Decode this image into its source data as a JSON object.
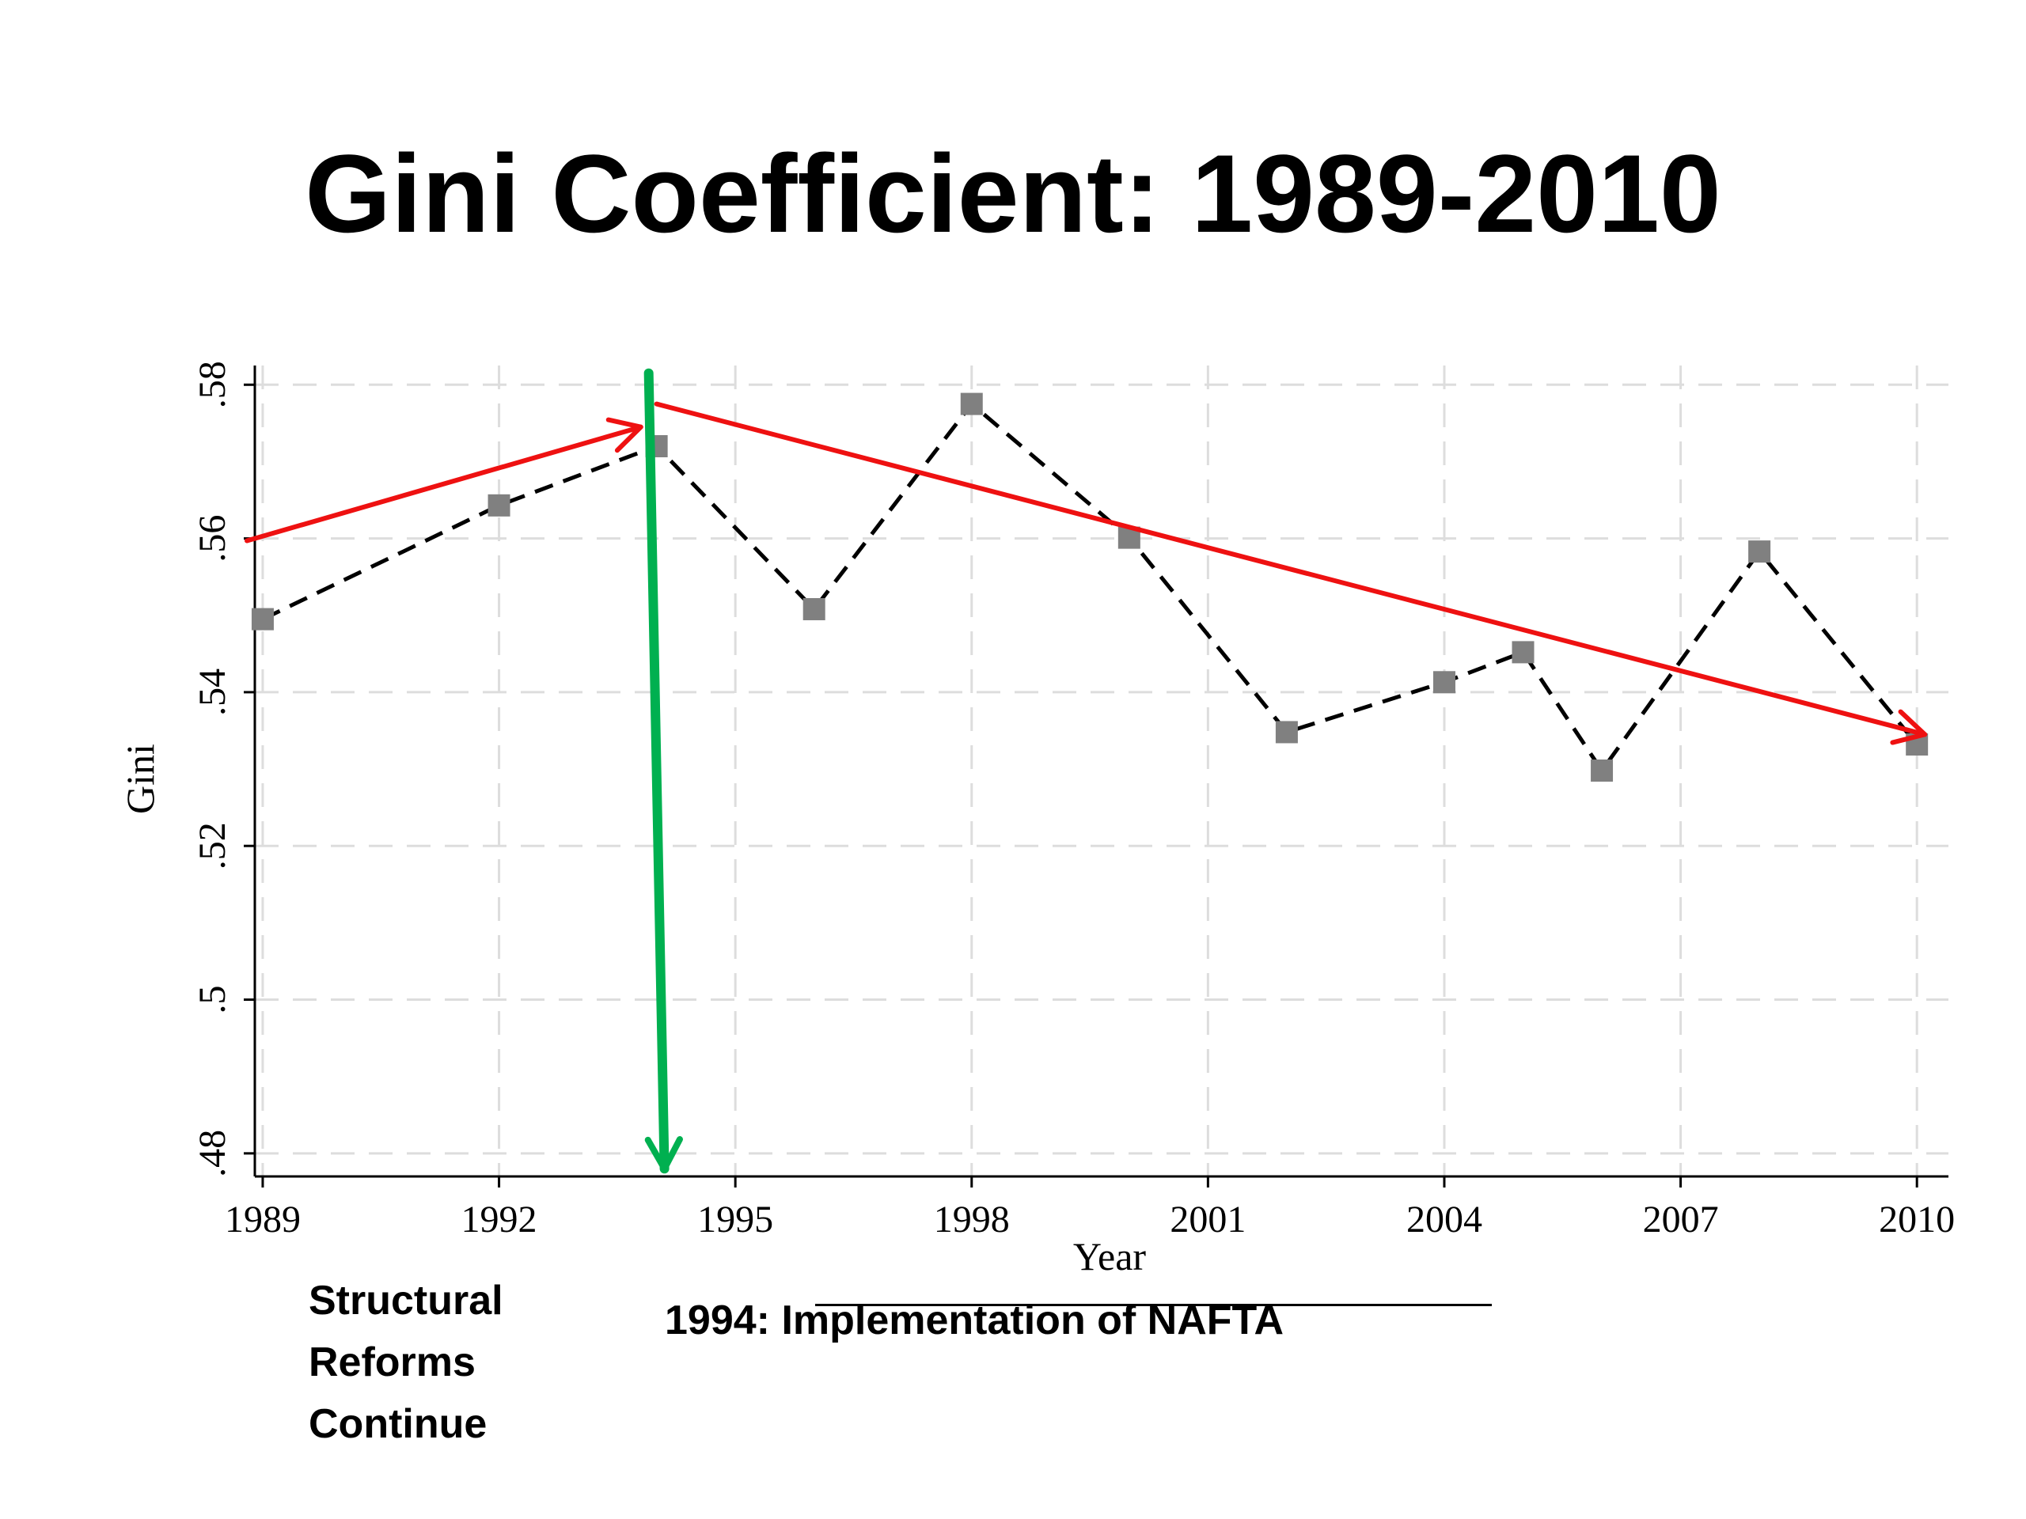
{
  "slide": {
    "title": "Gini Coefficient: 1989-2010"
  },
  "annotations": {
    "reforms_lines": [
      "Structural",
      "Reforms",
      "Continue"
    ],
    "nafta": "1994: Implementation of NAFTA",
    "arrows": [
      {
        "name": "rising-trend-arrow",
        "from": [
          1988.8,
          0.5597
        ],
        "to": [
          1993.8,
          0.5745
        ],
        "color": "#ee1111"
      },
      {
        "name": "nafta-marker-arrow",
        "from": [
          1993.9,
          0.5815
        ],
        "to": [
          1994.1,
          0.478
        ],
        "color": "#00b050"
      },
      {
        "name": "falling-trend-arrow",
        "from": [
          1994.0,
          0.5775
        ],
        "to": [
          2010.1,
          0.5345
        ],
        "color": "#ee1111"
      }
    ]
  },
  "chart_data": {
    "type": "line",
    "title": "",
    "xlabel": "Year",
    "ylabel": "Gini",
    "xlim": [
      1988.9,
      2010.4
    ],
    "ylim": [
      0.477,
      0.5825
    ],
    "x_ticks": [
      1989,
      1992,
      1995,
      1998,
      2001,
      2004,
      2007,
      2010
    ],
    "y_ticks": [
      0.48,
      0.5,
      0.52,
      0.54,
      0.56,
      0.58
    ],
    "y_tick_labels": [
      ".48",
      ".5",
      ".52",
      ".54",
      ".56",
      ".58"
    ],
    "grid": true,
    "series": [
      {
        "x": [
          1989,
          1992,
          1994,
          1996,
          1998,
          2000,
          2002,
          2004,
          2005,
          2006,
          2008,
          2010
        ],
        "y": [
          0.5495,
          0.5643,
          0.572,
          0.5508,
          0.5775,
          0.5601,
          0.5348,
          0.5413,
          0.5452,
          0.5298,
          0.5583,
          0.5332
        ],
        "line_style": "dashed",
        "line_color": "#000000",
        "marker": "square",
        "marker_color": "#808080"
      }
    ]
  }
}
